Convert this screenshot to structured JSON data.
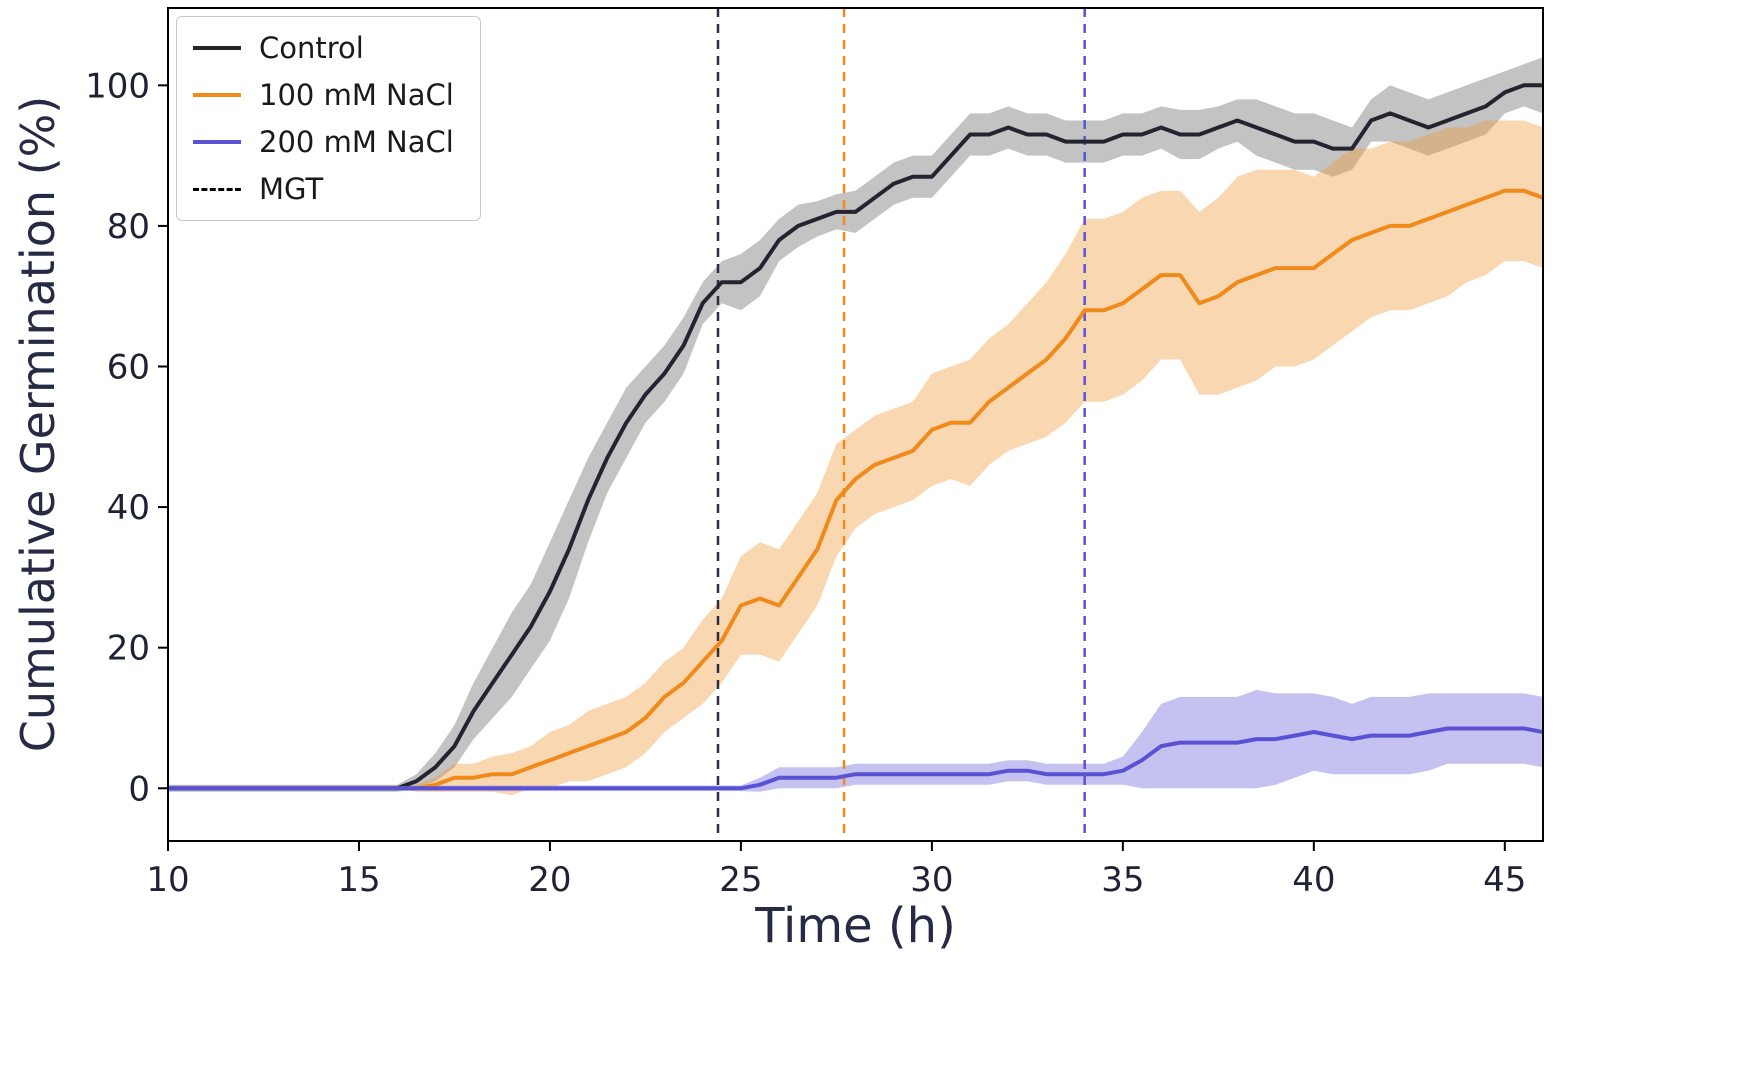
{
  "figure": {
    "background": "#ffffff"
  },
  "chart_data": {
    "type": "line",
    "title": "",
    "xlabel": "Time (h)",
    "ylabel": "Cumulative Germination (%)",
    "xlim": [
      10,
      46
    ],
    "ylim": [
      -7.5,
      111
    ],
    "x_ticks": [
      10,
      15,
      20,
      25,
      30,
      35,
      40,
      45
    ],
    "y_ticks": [
      0,
      20,
      40,
      60,
      80,
      100
    ],
    "grid": false,
    "axis_color": "#000000",
    "tick_color": "#1f2235",
    "label_color": "#262a45",
    "x": [
      10,
      10.5,
      11,
      11.5,
      12,
      12.5,
      13,
      13.5,
      14,
      14.5,
      15,
      15.5,
      16,
      16.5,
      17,
      17.5,
      18,
      18.5,
      19,
      19.5,
      20,
      20.5,
      21,
      21.5,
      22,
      22.5,
      23,
      23.5,
      24,
      24.5,
      25,
      25.5,
      26,
      26.5,
      27,
      27.5,
      28,
      28.5,
      29,
      29.5,
      30,
      30.5,
      31,
      31.5,
      32,
      32.5,
      33,
      33.5,
      34,
      34.5,
      35,
      35.5,
      36,
      36.5,
      37,
      37.5,
      38,
      38.5,
      39,
      39.5,
      40,
      40.5,
      41,
      41.5,
      42,
      42.5,
      43,
      43.5,
      44,
      44.5,
      45,
      45.5,
      46
    ],
    "series": [
      {
        "name": "Control",
        "color": "#23242f",
        "band_color": "#888888",
        "band_opacity": 0.5,
        "values": [
          0,
          0,
          0,
          0,
          0,
          0,
          0,
          0,
          0,
          0,
          0,
          0,
          0,
          1,
          3,
          6,
          11,
          15,
          19,
          23,
          28,
          34,
          41,
          47,
          52,
          56,
          59,
          63,
          69,
          72,
          72,
          74,
          78,
          80,
          81,
          82,
          82,
          84,
          86,
          87,
          87,
          90,
          93,
          93,
          94,
          93,
          93,
          92,
          92,
          92,
          93,
          93,
          94,
          93,
          93,
          94,
          95,
          94,
          93,
          92,
          92,
          91,
          91,
          95,
          96,
          95,
          94,
          95,
          96,
          97,
          99,
          100,
          100
        ],
        "band_halfwidth": [
          0.5,
          0.5,
          0.5,
          0.5,
          0.5,
          0.5,
          0.5,
          0.5,
          0.5,
          0.5,
          0.5,
          0.5,
          0.5,
          1,
          2,
          3,
          4,
          5,
          6,
          6,
          7,
          7,
          6,
          5,
          5,
          4,
          4,
          4,
          3,
          3,
          4,
          4,
          3,
          3,
          2.5,
          2.5,
          3,
          3,
          3,
          3,
          3,
          3,
          3,
          3,
          3,
          3,
          3,
          3,
          3,
          3,
          3,
          3,
          3,
          3.5,
          3.5,
          3,
          3,
          4,
          4,
          4,
          4,
          4,
          3,
          3,
          4,
          4,
          4,
          4,
          4,
          4,
          3,
          3,
          4
        ]
      },
      {
        "name": "100 mM NaCl",
        "color": "#ef8a1b",
        "band_color": "#f0962f",
        "band_opacity": 0.38,
        "values": [
          0,
          0,
          0,
          0,
          0,
          0,
          0,
          0,
          0,
          0,
          0,
          0,
          0,
          0,
          0.5,
          1.5,
          1.5,
          2,
          2,
          3,
          4,
          5,
          6,
          7,
          8,
          10,
          13,
          15,
          18,
          21,
          26,
          27,
          26,
          30,
          34,
          41,
          44,
          46,
          47,
          48,
          51,
          52,
          52,
          55,
          57,
          59,
          61,
          64,
          68,
          68,
          69,
          71,
          73,
          73,
          69,
          70,
          72,
          73,
          74,
          74,
          74,
          76,
          78,
          79,
          80,
          80,
          81,
          82,
          83,
          84,
          85,
          85,
          84
        ],
        "band_halfwidth": [
          0,
          0,
          0,
          0,
          0,
          0,
          0,
          0,
          0,
          0,
          0,
          0,
          0,
          0.5,
          1,
          2,
          2,
          2.5,
          3,
          3,
          4,
          4,
          5,
          5,
          5,
          5,
          5,
          5,
          6,
          6,
          7,
          8,
          8,
          8,
          8,
          8,
          7,
          7,
          7,
          7,
          8,
          8,
          9,
          9,
          9,
          10,
          11,
          12,
          13,
          13,
          13,
          13,
          12,
          12,
          13,
          14,
          15,
          15,
          14,
          14,
          13,
          13,
          13,
          12,
          12,
          12,
          12,
          12,
          11,
          11,
          10,
          10,
          10
        ]
      },
      {
        "name": "200 mM NaCl",
        "color": "#5a52d5",
        "band_color": "#7f76e0",
        "band_opacity": 0.45,
        "values": [
          0,
          0,
          0,
          0,
          0,
          0,
          0,
          0,
          0,
          0,
          0,
          0,
          0,
          0,
          0,
          0,
          0,
          0,
          0,
          0,
          0,
          0,
          0,
          0,
          0,
          0,
          0,
          0,
          0,
          0,
          0,
          0.5,
          1.5,
          1.5,
          1.5,
          1.5,
          2,
          2,
          2,
          2,
          2,
          2,
          2,
          2,
          2.5,
          2.5,
          2,
          2,
          2,
          2,
          2.5,
          4,
          6,
          6.5,
          6.5,
          6.5,
          6.5,
          7,
          7,
          7.5,
          8,
          7.5,
          7,
          7.5,
          7.5,
          7.5,
          8,
          8.5,
          8.5,
          8.5,
          8.5,
          8.5,
          8
        ],
        "band_halfwidth": [
          0.4,
          0.4,
          0.4,
          0.4,
          0.4,
          0.4,
          0.4,
          0.4,
          0.4,
          0.4,
          0.4,
          0.4,
          0.4,
          0.4,
          0.4,
          0.4,
          0.4,
          0.4,
          0.4,
          0.4,
          0.4,
          0.4,
          0.4,
          0.4,
          0.4,
          0.4,
          0.4,
          0.4,
          0.4,
          0.4,
          0.4,
          1,
          1.5,
          1.5,
          1.5,
          1.5,
          1.5,
          1.5,
          1.5,
          1.5,
          1.5,
          1.5,
          1.5,
          1.5,
          1.5,
          1.5,
          1.5,
          1.5,
          1.5,
          1.5,
          2,
          4,
          6,
          6.5,
          6.5,
          6.5,
          6.5,
          7,
          6.5,
          6,
          5.5,
          5.5,
          5,
          5.5,
          5.5,
          5.5,
          5.5,
          5,
          5,
          5,
          5,
          5,
          5
        ]
      }
    ],
    "mgt_lines": [
      {
        "series": "Control",
        "x": 24.4,
        "color": "#2b2d42"
      },
      {
        "series": "100 mM NaCl",
        "x": 27.7,
        "color": "#ef8a1b"
      },
      {
        "series": "200 mM NaCl",
        "x": 34.0,
        "color": "#5a52d5"
      }
    ],
    "legend": {
      "position": "upper-left",
      "items": [
        {
          "label": "Control",
          "color": "#23242f",
          "dashed": false
        },
        {
          "label": "100 mM NaCl",
          "color": "#ef8a1b",
          "dashed": false
        },
        {
          "label": "200 mM NaCl",
          "color": "#5a52d5",
          "dashed": false
        },
        {
          "label": "MGT",
          "color": "#000000",
          "dashed": true
        }
      ]
    }
  }
}
